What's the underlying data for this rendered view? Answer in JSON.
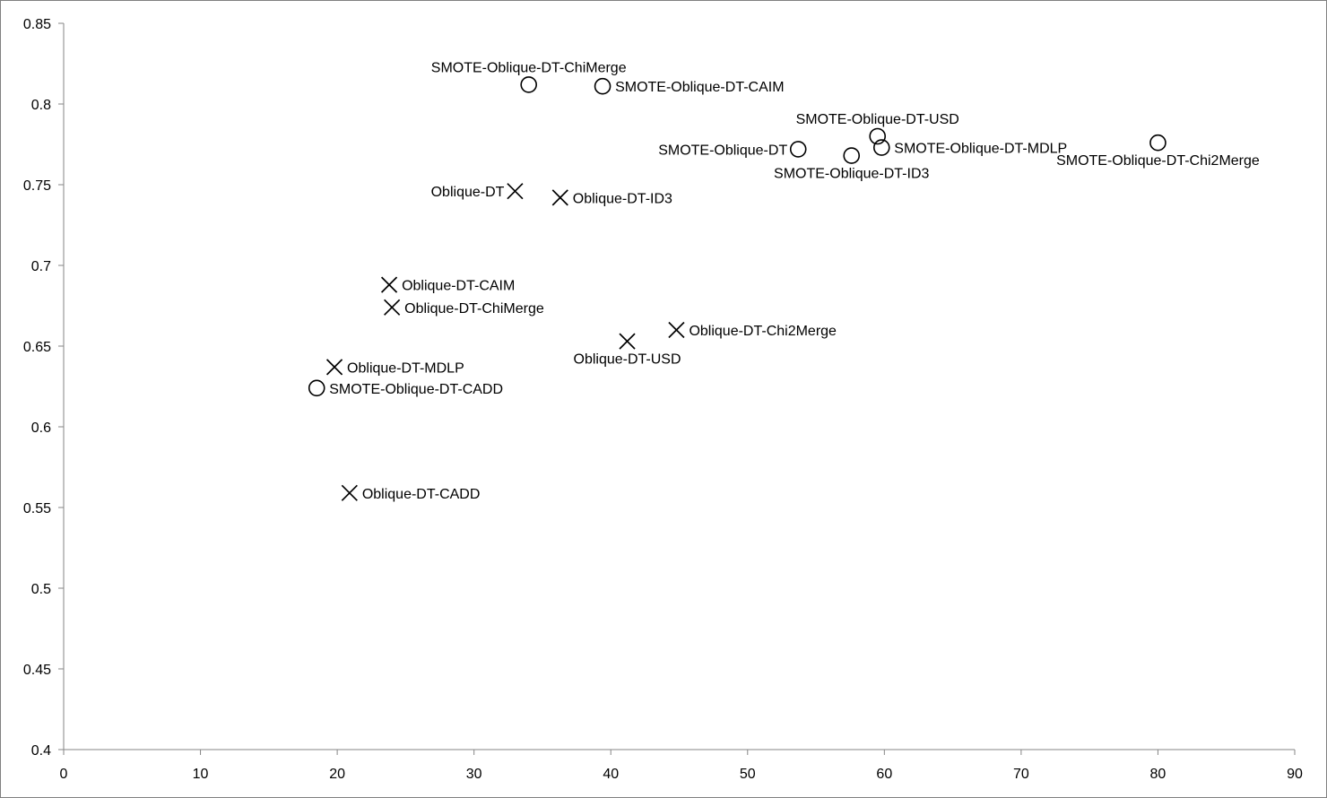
{
  "chart_data": {
    "type": "scatter",
    "title": "",
    "xlabel": "",
    "ylabel": "",
    "xlim": [
      0,
      90
    ],
    "ylim": [
      0.4,
      0.85
    ],
    "x_ticks": [
      0,
      10,
      20,
      30,
      40,
      50,
      60,
      70,
      80,
      90
    ],
    "y_ticks": [
      0.4,
      0.45,
      0.5,
      0.55,
      0.6,
      0.65,
      0.7,
      0.75,
      0.8,
      0.85
    ],
    "x_tick_labels": [
      "0",
      "10",
      "20",
      "30",
      "40",
      "50",
      "60",
      "70",
      "80",
      "90"
    ],
    "y_tick_labels": [
      "0.4",
      "0.45",
      "0.5",
      "0.55",
      "0.6",
      "0.65",
      "0.7",
      "0.75",
      "0.8",
      "0.85"
    ],
    "grid": false,
    "legend": "none",
    "colors": {
      "marker": "#000000",
      "axis": "#868686",
      "text": "#000000"
    },
    "series": [
      {
        "marker": "circle",
        "points": [
          {
            "label": "SMOTE-Oblique-DT-ChiMerge",
            "x": 34.0,
            "y": 0.812,
            "label_pos": "top"
          },
          {
            "label": "SMOTE-Oblique-DT-CAIM",
            "x": 39.4,
            "y": 0.811,
            "label_pos": "right"
          },
          {
            "label": "SMOTE-Oblique-DT-USD",
            "x": 59.5,
            "y": 0.78,
            "label_pos": "top"
          },
          {
            "label": "SMOTE-Oblique-DT",
            "x": 53.7,
            "y": 0.772,
            "label_pos": "left"
          },
          {
            "label": "SMOTE-Oblique-DT-MDLP",
            "x": 59.8,
            "y": 0.773,
            "label_pos": "right"
          },
          {
            "label": "SMOTE-Oblique-DT-ID3",
            "x": 57.6,
            "y": 0.768,
            "label_pos": "bottom"
          },
          {
            "label": "SMOTE-Oblique-DT-Chi2Merge",
            "x": 80.0,
            "y": 0.776,
            "label_pos": "bottom"
          },
          {
            "label": "SMOTE-Oblique-DT-CADD",
            "x": 18.5,
            "y": 0.624,
            "label_pos": "right"
          }
        ]
      },
      {
        "marker": "cross",
        "points": [
          {
            "label": "Oblique-DT",
            "x": 33.0,
            "y": 0.746,
            "label_pos": "left"
          },
          {
            "label": "Oblique-DT-ID3",
            "x": 36.3,
            "y": 0.742,
            "label_pos": "right"
          },
          {
            "label": "Oblique-DT-CAIM",
            "x": 23.8,
            "y": 0.688,
            "label_pos": "right"
          },
          {
            "label": "Oblique-DT-ChiMerge",
            "x": 24.0,
            "y": 0.674,
            "label_pos": "right"
          },
          {
            "label": "Oblique-DT-Chi2Merge",
            "x": 44.8,
            "y": 0.66,
            "label_pos": "right"
          },
          {
            "label": "Oblique-DT-USD",
            "x": 41.2,
            "y": 0.653,
            "label_pos": "bottom"
          },
          {
            "label": "Oblique-DT-MDLP",
            "x": 19.8,
            "y": 0.637,
            "label_pos": "right"
          },
          {
            "label": "Oblique-DT-CADD",
            "x": 20.9,
            "y": 0.559,
            "label_pos": "right"
          }
        ]
      }
    ]
  }
}
